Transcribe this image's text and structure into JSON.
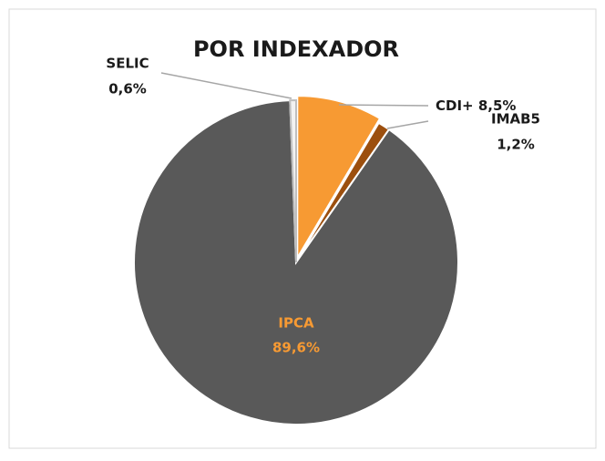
{
  "chart_data": {
    "type": "pie",
    "title": "POR INDEXADOR",
    "categories": [
      "CDI+",
      "IMAB5",
      "IPCA",
      "SELIC"
    ],
    "values": [
      8.5,
      1.2,
      89.6,
      0.6
    ],
    "value_labels": [
      "8,5%",
      "1,2%",
      "89,6%",
      "0,6%"
    ],
    "colors": [
      "#f79a33",
      "#9c4f0e",
      "#595959",
      "#f2f2f2"
    ]
  }
}
